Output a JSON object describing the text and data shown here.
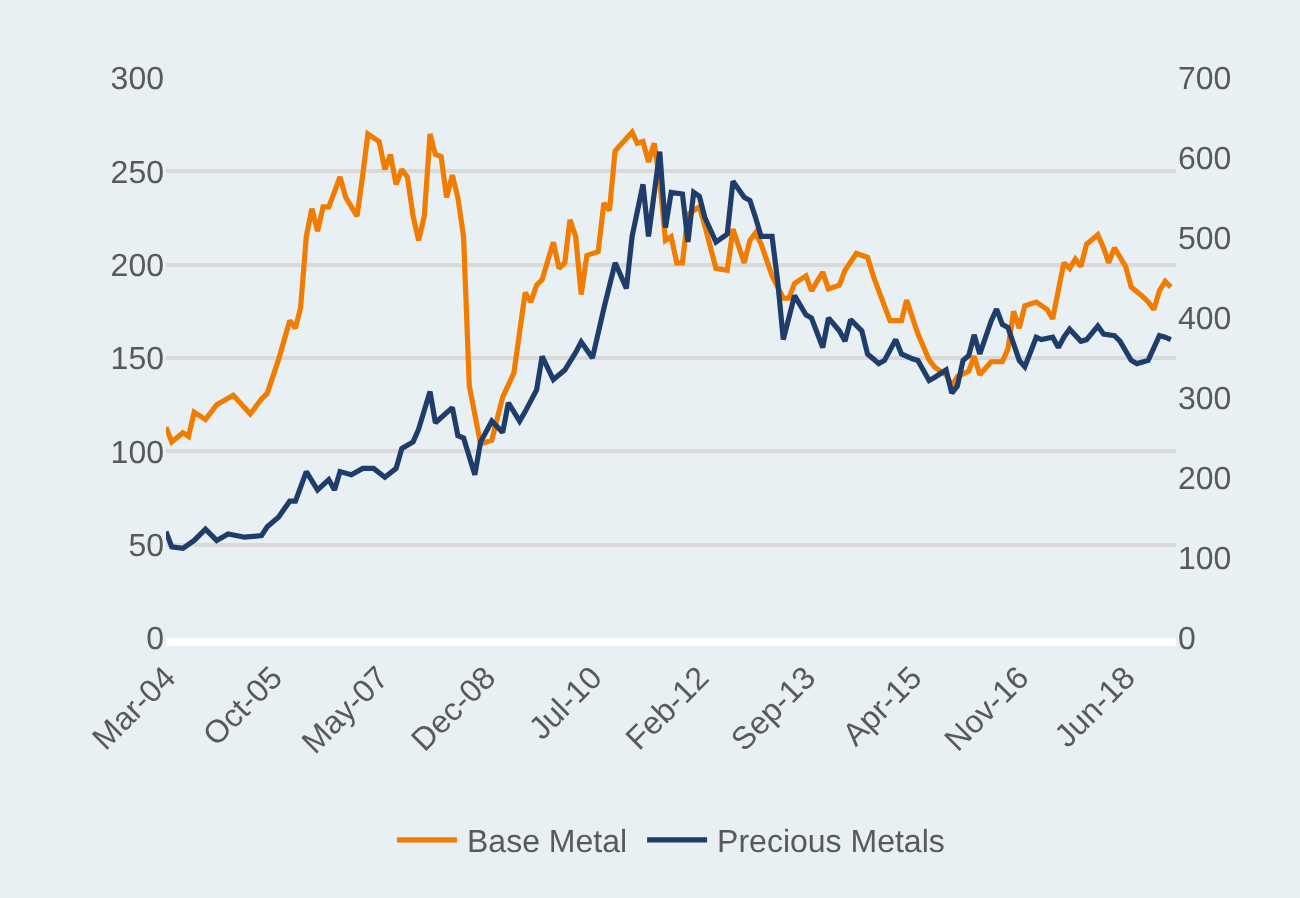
{
  "chart_data": {
    "type": "line",
    "series": [
      {
        "name": "Base Metal",
        "color": "#f07c00",
        "axis": "y",
        "x": [
          "2004-03",
          "2004-04",
          "2004-06",
          "2004-07",
          "2004-08",
          "2004-10",
          "2004-12",
          "2005-03",
          "2005-06",
          "2005-08",
          "2005-09",
          "2005-11",
          "2006-01",
          "2006-02",
          "2006-03",
          "2006-04",
          "2006-05",
          "2006-06",
          "2006-07",
          "2006-08",
          "2006-10",
          "2006-11",
          "2007-01",
          "2007-02",
          "2007-03",
          "2007-05",
          "2007-06",
          "2007-07",
          "2007-08",
          "2007-09",
          "2007-10",
          "2007-11",
          "2007-12",
          "2008-01",
          "2008-02",
          "2008-03",
          "2008-04",
          "2008-05",
          "2008-06",
          "2008-07",
          "2008-08",
          "2008-09",
          "2008-11",
          "2009-01",
          "2009-03",
          "2009-05",
          "2009-07",
          "2009-08",
          "2009-09",
          "2009-10",
          "2009-12",
          "2010-01",
          "2010-02",
          "2010-03",
          "2010-04",
          "2010-05",
          "2010-06",
          "2010-08",
          "2010-09",
          "2010-10",
          "2010-11",
          "2011-02",
          "2011-03",
          "2011-04",
          "2011-05",
          "2011-06",
          "2011-07",
          "2011-08",
          "2011-09",
          "2011-10",
          "2011-11",
          "2011-12",
          "2012-02",
          "2012-03",
          "2012-05",
          "2012-07",
          "2012-08",
          "2012-10",
          "2012-11",
          "2012-12",
          "2013-01",
          "2013-03",
          "2013-05",
          "2013-06",
          "2013-07",
          "2013-09",
          "2013-10",
          "2013-12",
          "2014-01",
          "2014-03",
          "2014-04",
          "2014-06",
          "2014-08",
          "2014-09",
          "2014-10",
          "2014-12",
          "2015-02",
          "2015-03",
          "2015-05",
          "2015-07",
          "2015-08",
          "2015-10",
          "2015-11",
          "2015-12",
          "2016-02",
          "2016-03",
          "2016-04",
          "2016-06",
          "2016-08",
          "2016-09",
          "2016-10",
          "2016-11",
          "2016-12",
          "2017-02",
          "2017-04",
          "2017-05",
          "2017-07",
          "2017-08",
          "2017-09",
          "2017-10",
          "2017-11",
          "2018-01",
          "2018-02",
          "2018-03",
          "2018-04",
          "2018-06",
          "2018-07",
          "2018-09",
          "2018-10",
          "2018-11",
          "2018-12",
          "2019-01",
          "2019-02"
        ],
        "values": [
          113,
          105,
          110,
          108,
          121,
          117,
          125,
          130,
          120,
          128,
          131,
          149,
          170,
          166,
          177,
          215,
          230,
          218,
          231,
          231,
          247,
          236,
          226,
          248,
          270,
          266,
          251,
          259,
          243,
          251,
          247,
          226,
          213,
          226,
          270,
          259,
          258,
          236,
          248,
          236,
          215,
          135,
          104,
          106,
          129,
          142,
          185,
          180,
          189,
          192,
          212,
          198,
          201,
          224,
          215,
          184,
          205,
          207,
          233,
          229,
          261,
          271,
          265,
          266,
          255,
          265,
          245,
          213,
          215,
          201,
          201,
          227,
          231,
          221,
          198,
          197,
          219,
          201,
          213,
          217,
          211,
          194,
          182,
          182,
          190,
          194,
          186,
          196,
          187,
          189,
          197,
          206,
          204,
          194,
          186,
          170,
          170,
          181,
          163,
          149,
          145,
          141,
          135,
          140,
          143,
          151,
          141,
          148,
          148,
          155,
          175,
          166,
          178,
          180,
          176,
          171,
          201,
          198,
          203,
          199,
          211,
          216,
          209,
          201,
          209,
          199,
          188,
          183,
          180,
          176,
          186,
          191,
          188
        ]
      },
      {
        "name": "Precious Metals",
        "color": "#1f3d6b",
        "axis": "y2",
        "x": [
          "2004-03",
          "2004-04",
          "2004-06",
          "2004-08",
          "2004-10",
          "2004-12",
          "2005-02",
          "2005-05",
          "2005-08",
          "2005-09",
          "2005-11",
          "2006-01",
          "2006-02",
          "2006-04",
          "2006-06",
          "2006-08",
          "2006-09",
          "2006-10",
          "2006-12",
          "2007-02",
          "2007-04",
          "2007-06",
          "2007-08",
          "2007-09",
          "2007-11",
          "2007-12",
          "2008-02",
          "2008-03",
          "2008-06",
          "2008-07",
          "2008-08",
          "2008-10",
          "2008-11",
          "2009-01",
          "2009-03",
          "2009-04",
          "2009-06",
          "2009-07",
          "2009-09",
          "2009-10",
          "2009-12",
          "2010-02",
          "2010-04",
          "2010-05",
          "2010-07",
          "2010-09",
          "2010-11",
          "2011-01",
          "2011-02",
          "2011-04",
          "2011-05",
          "2011-07",
          "2011-08",
          "2011-09",
          "2011-11",
          "2011-12",
          "2012-01",
          "2012-02",
          "2012-03",
          "2012-05",
          "2012-07",
          "2012-08",
          "2012-10",
          "2012-11",
          "2012-12",
          "2013-01",
          "2013-03",
          "2013-04",
          "2013-05",
          "2013-07",
          "2013-09",
          "2013-10",
          "2013-12",
          "2014-01",
          "2014-03",
          "2014-04",
          "2014-05",
          "2014-07",
          "2014-08",
          "2014-10",
          "2014-11",
          "2015-01",
          "2015-02",
          "2015-04",
          "2015-05",
          "2015-07",
          "2015-08",
          "2015-10",
          "2015-11",
          "2015-12",
          "2016-01",
          "2016-02",
          "2016-03",
          "2016-04",
          "2016-06",
          "2016-07",
          "2016-08",
          "2016-09",
          "2016-11",
          "2016-12",
          "2017-02",
          "2017-03",
          "2017-05",
          "2017-06",
          "2017-07",
          "2017-08",
          "2017-10",
          "2017-11",
          "2018-01",
          "2018-02",
          "2018-04",
          "2018-05",
          "2018-07",
          "2018-08",
          "2018-10",
          "2018-12",
          "2019-01",
          "2019-02"
        ],
        "values": [
          133,
          114,
          112,
          122,
          136,
          122,
          130,
          126,
          128,
          139,
          151,
          171,
          171,
          208,
          185,
          198,
          185,
          208,
          204,
          212,
          212,
          201,
          212,
          237,
          245,
          261,
          308,
          269,
          288,
          253,
          250,
          204,
          245,
          271,
          257,
          294,
          271,
          283,
          310,
          352,
          323,
          335,
          357,
          370,
          350,
          412,
          469,
          437,
          502,
          567,
          502,
          608,
          513,
          557,
          555,
          495,
          557,
          552,
          526,
          495,
          505,
          571,
          551,
          547,
          526,
          502,
          502,
          445,
          373,
          428,
          404,
          400,
          363,
          400,
          384,
          371,
          398,
          384,
          355,
          343,
          347,
          373,
          355,
          349,
          347,
          322,
          326,
          335,
          306,
          315,
          347,
          353,
          379,
          355,
          396,
          411,
          392,
          388,
          347,
          339,
          376,
          373,
          376,
          363,
          376,
          386,
          371,
          373,
          390,
          380,
          378,
          371,
          347,
          343,
          347,
          378,
          376,
          373
        ]
      }
    ],
    "xlim": [
      "2004-03",
      "2019-03"
    ],
    "xticks": [
      {
        "value": "2004-03",
        "label": "Mar-04"
      },
      {
        "value": "2005-10",
        "label": "Oct-05"
      },
      {
        "value": "2007-05",
        "label": "May-07"
      },
      {
        "value": "2008-12",
        "label": "Dec-08"
      },
      {
        "value": "2010-07",
        "label": "Jul-10"
      },
      {
        "value": "2012-02",
        "label": "Feb-12"
      },
      {
        "value": "2013-09",
        "label": "Sep-13"
      },
      {
        "value": "2015-04",
        "label": "Apr-15"
      },
      {
        "value": "2016-11",
        "label": "Nov-16"
      },
      {
        "value": "2018-06",
        "label": "Jun-18"
      }
    ],
    "ylim": [
      0,
      300
    ],
    "yticks": [
      0,
      50,
      100,
      150,
      200,
      250,
      300
    ],
    "y2lim": [
      0,
      700
    ],
    "y2ticks": [
      0,
      100,
      200,
      300,
      400,
      500,
      600,
      700
    ],
    "grid": "y",
    "legend": "bottom",
    "marker": "none",
    "line_style": "solid"
  }
}
